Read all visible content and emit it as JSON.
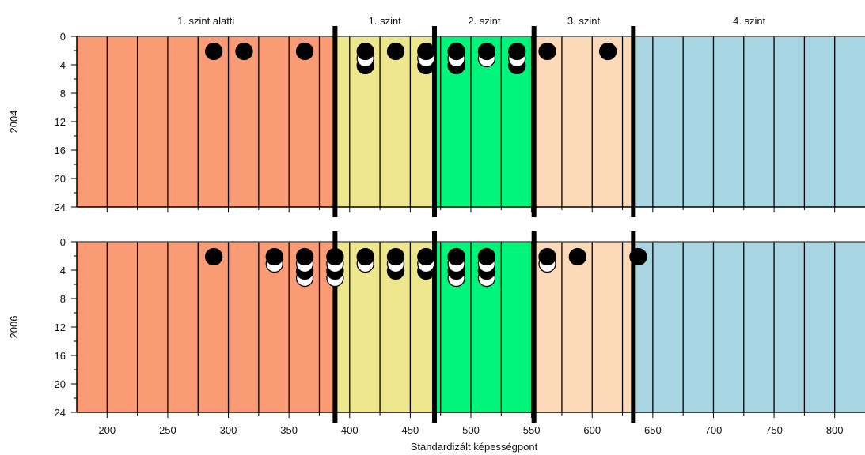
{
  "chart_data": {
    "type": "scatter",
    "xlabel": "Standardizált képességpont",
    "x_ticks": [
      200,
      250,
      300,
      350,
      400,
      450,
      500,
      550,
      600,
      650,
      700,
      750,
      800
    ],
    "xlim": [
      175,
      825
    ],
    "y_ticks": [
      0,
      4,
      8,
      12,
      16,
      20,
      24
    ],
    "ylim": [
      0,
      24
    ],
    "vertical_gridlines": [
      200,
      225,
      250,
      275,
      300,
      325,
      350,
      375,
      400,
      425,
      450,
      475,
      500,
      525,
      550,
      575,
      600,
      625,
      650,
      675,
      700,
      725,
      750,
      775,
      800
    ],
    "levels": [
      {
        "label": "1. szint alatti",
        "from": 175,
        "to": 388,
        "color": "#fa9b76"
      },
      {
        "label": "1. szint",
        "from": 388,
        "to": 470,
        "color": "#ede68d"
      },
      {
        "label": "2. szint",
        "from": 470,
        "to": 552,
        "color": "#00f57a"
      },
      {
        "label": "3. szint",
        "from": 552,
        "to": 634,
        "color": "#fcd9b8"
      },
      {
        "label": "4. szint",
        "from": 634,
        "to": 825,
        "color": "#a8d5e2"
      }
    ],
    "cutoffs": [
      388,
      470,
      552,
      634
    ],
    "panels": [
      {
        "ylabel": "2004",
        "points": [
          {
            "x": 288,
            "y": 2,
            "fill": "black"
          },
          {
            "x": 313,
            "y": 2,
            "fill": "black"
          },
          {
            "x": 363,
            "y": 2,
            "fill": "black"
          },
          {
            "x": 413,
            "y": 2,
            "fill": "black"
          },
          {
            "x": 413,
            "y": 3,
            "fill": "white"
          },
          {
            "x": 413,
            "y": 4,
            "fill": "black"
          },
          {
            "x": 438,
            "y": 2,
            "fill": "black"
          },
          {
            "x": 463,
            "y": 2,
            "fill": "black"
          },
          {
            "x": 463,
            "y": 3,
            "fill": "white"
          },
          {
            "x": 463,
            "y": 4,
            "fill": "black"
          },
          {
            "x": 488,
            "y": 2,
            "fill": "black"
          },
          {
            "x": 488,
            "y": 3,
            "fill": "white"
          },
          {
            "x": 488,
            "y": 4,
            "fill": "black"
          },
          {
            "x": 513,
            "y": 2,
            "fill": "black"
          },
          {
            "x": 513,
            "y": 3,
            "fill": "white"
          },
          {
            "x": 538,
            "y": 2,
            "fill": "black"
          },
          {
            "x": 538,
            "y": 3,
            "fill": "white"
          },
          {
            "x": 538,
            "y": 4,
            "fill": "black"
          },
          {
            "x": 563,
            "y": 2,
            "fill": "black"
          },
          {
            "x": 613,
            "y": 2,
            "fill": "black"
          }
        ]
      },
      {
        "ylabel": "2006",
        "points": [
          {
            "x": 288,
            "y": 2,
            "fill": "black"
          },
          {
            "x": 338,
            "y": 2,
            "fill": "black"
          },
          {
            "x": 338,
            "y": 3,
            "fill": "white"
          },
          {
            "x": 363,
            "y": 2,
            "fill": "black"
          },
          {
            "x": 363,
            "y": 3,
            "fill": "white"
          },
          {
            "x": 363,
            "y": 4,
            "fill": "black"
          },
          {
            "x": 363,
            "y": 5,
            "fill": "white"
          },
          {
            "x": 388,
            "y": 2,
            "fill": "black"
          },
          {
            "x": 388,
            "y": 3,
            "fill": "white"
          },
          {
            "x": 388,
            "y": 4,
            "fill": "black"
          },
          {
            "x": 388,
            "y": 5,
            "fill": "white"
          },
          {
            "x": 413,
            "y": 2,
            "fill": "black"
          },
          {
            "x": 413,
            "y": 3,
            "fill": "white"
          },
          {
            "x": 438,
            "y": 2,
            "fill": "black"
          },
          {
            "x": 438,
            "y": 3,
            "fill": "white"
          },
          {
            "x": 438,
            "y": 4,
            "fill": "black"
          },
          {
            "x": 463,
            "y": 2,
            "fill": "black"
          },
          {
            "x": 463,
            "y": 3,
            "fill": "white"
          },
          {
            "x": 463,
            "y": 4,
            "fill": "black"
          },
          {
            "x": 488,
            "y": 2,
            "fill": "black"
          },
          {
            "x": 488,
            "y": 3,
            "fill": "white"
          },
          {
            "x": 488,
            "y": 4,
            "fill": "black"
          },
          {
            "x": 488,
            "y": 5,
            "fill": "white"
          },
          {
            "x": 513,
            "y": 2,
            "fill": "black"
          },
          {
            "x": 513,
            "y": 3,
            "fill": "white"
          },
          {
            "x": 513,
            "y": 4,
            "fill": "black"
          },
          {
            "x": 513,
            "y": 5,
            "fill": "white"
          },
          {
            "x": 563,
            "y": 2,
            "fill": "black"
          },
          {
            "x": 563,
            "y": 3,
            "fill": "white"
          },
          {
            "x": 588,
            "y": 2,
            "fill": "black"
          },
          {
            "x": 638,
            "y": 2,
            "fill": "black"
          }
        ]
      }
    ]
  }
}
